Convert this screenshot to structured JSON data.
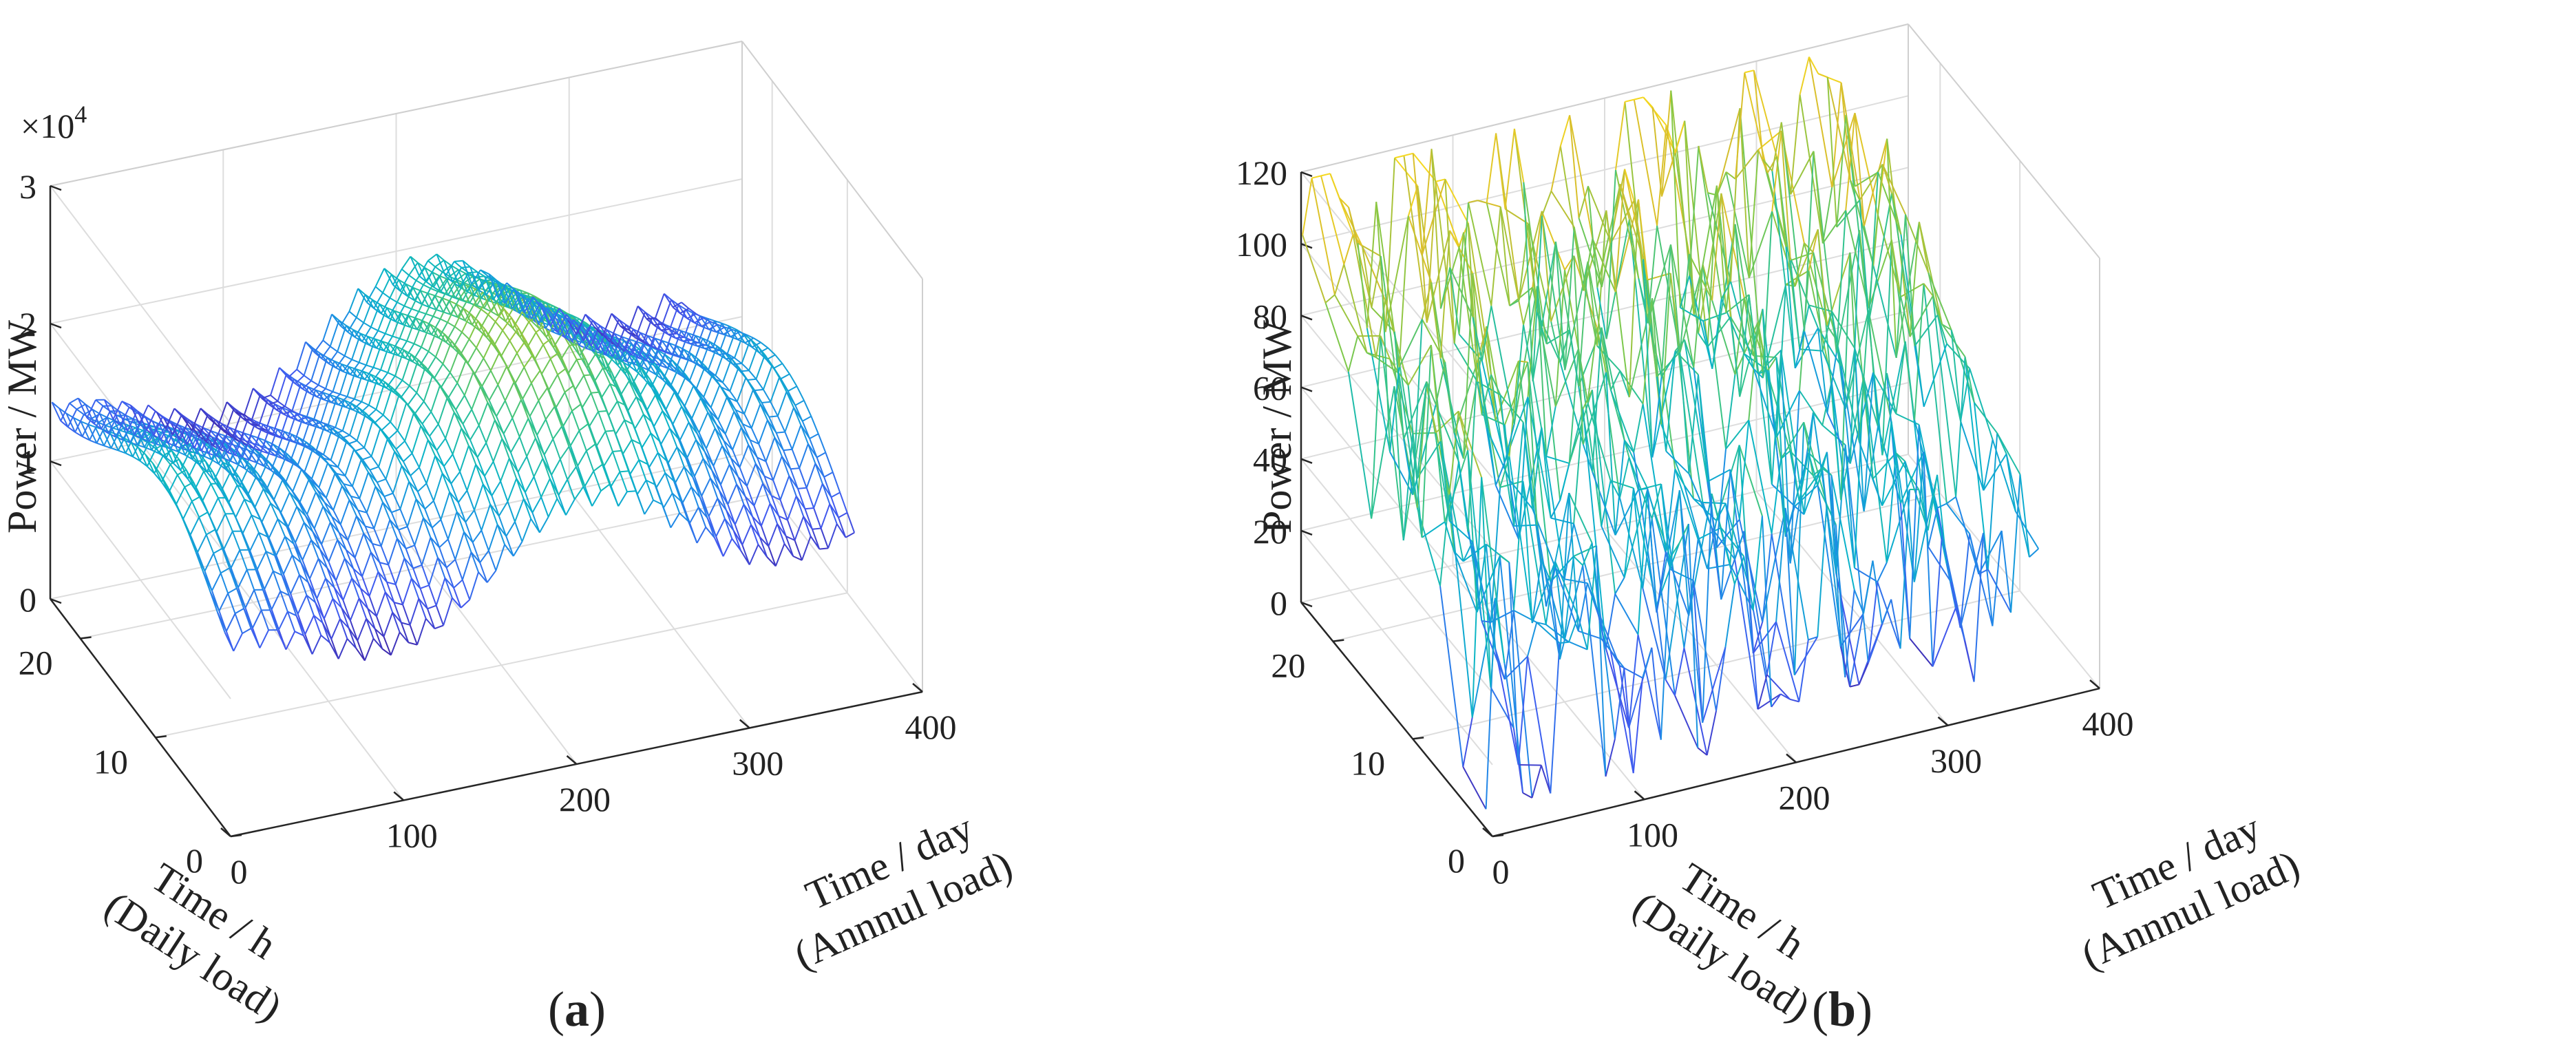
{
  "chart_data": [
    {
      "type": "3d-mesh",
      "panel_label": "a",
      "zlabel": "Power / MW",
      "ylabel_lines": [
        "Time / h",
        "(Daily load)"
      ],
      "xlabel_lines": [
        "Time / day",
        "(Annnul load)"
      ],
      "z_exponent": "×10",
      "z_exponent_power": "4",
      "z_ticks": [
        "0",
        "1",
        "2",
        "3"
      ],
      "x_ticks": [
        "0",
        "100",
        "200",
        "300",
        "400"
      ],
      "y_ticks": [
        "0",
        "10",
        "20"
      ],
      "xlim": [
        0,
        400
      ],
      "ylim": [
        0,
        24
      ],
      "zlim": [
        0,
        30000
      ],
      "x_range": [
        1,
        365
      ],
      "y_range": [
        1,
        24
      ],
      "z_range_approx": [
        10500,
        28500
      ],
      "colormap": "parula",
      "grid": true
    },
    {
      "type": "3d-mesh",
      "panel_label": "b",
      "zlabel": "Power / MW",
      "ylabel_lines": [
        "Time / h",
        "(Daily load)"
      ],
      "xlabel_lines": [
        "Time / day",
        "(Annnul load)"
      ],
      "z_ticks": [
        "0",
        "20",
        "40",
        "60",
        "80",
        "100",
        "120"
      ],
      "x_ticks": [
        "0",
        "100",
        "200",
        "300",
        "400"
      ],
      "y_ticks": [
        "0",
        "10",
        "20"
      ],
      "xlim": [
        0,
        400
      ],
      "ylim": [
        0,
        24
      ],
      "zlim": [
        0,
        120
      ],
      "x_range": [
        1,
        365
      ],
      "y_range": [
        1,
        24
      ],
      "z_range_approx": [
        5,
        120
      ],
      "colormap": "parula",
      "grid": true
    }
  ]
}
